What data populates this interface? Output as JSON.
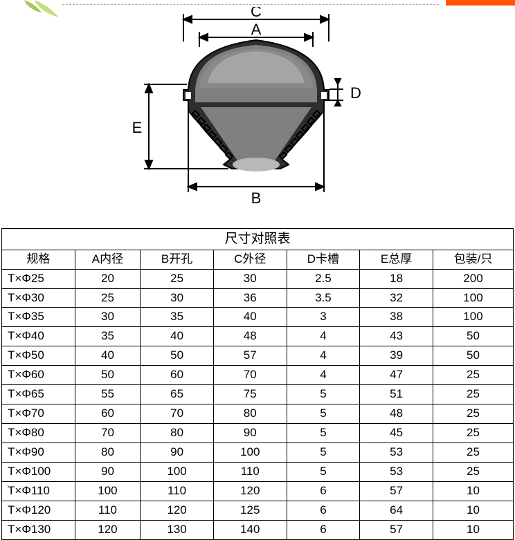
{
  "leaf": {
    "fill": "#a5c85a",
    "fill2": "#c2e07a"
  },
  "diagram": {
    "labels": {
      "A": "A",
      "B": "B",
      "C": "C",
      "D": "D",
      "E": "E"
    },
    "colors": {
      "outline": "#000000",
      "body_dark": "#2e2e2e",
      "body_mid": "#808080",
      "body_mid2": "#8a8a8a",
      "body_light": "#b8b8b8",
      "arrow": "#000000",
      "label": "#000000"
    },
    "font_size": 22
  },
  "table": {
    "title": "尺寸对照表",
    "columns": [
      "规格",
      "A内径",
      "B开孔",
      "C外径",
      "D卡槽",
      "E总厚",
      "包装/只"
    ],
    "spec_prefix": "T×",
    "phi": "Φ",
    "rows": [
      {
        "size": "25",
        "a": "20",
        "b": "25",
        "c": "30",
        "d": "2.5",
        "e": "18",
        "pack": "200"
      },
      {
        "size": "30",
        "a": "25",
        "b": "30",
        "c": "36",
        "d": "3.5",
        "e": "32",
        "pack": "100"
      },
      {
        "size": "35",
        "a": "30",
        "b": "35",
        "c": "40",
        "d": "3",
        "e": "38",
        "pack": "100"
      },
      {
        "size": "40",
        "a": "35",
        "b": "40",
        "c": "48",
        "d": "4",
        "e": "43",
        "pack": "50"
      },
      {
        "size": "50",
        "a": "40",
        "b": "50",
        "c": "57",
        "d": "4",
        "e": "39",
        "pack": "50"
      },
      {
        "size": "60",
        "a": "50",
        "b": "60",
        "c": "70",
        "d": "4",
        "e": "47",
        "pack": "25"
      },
      {
        "size": "65",
        "a": "55",
        "b": "65",
        "c": "75",
        "d": "5",
        "e": "51",
        "pack": "25"
      },
      {
        "size": "70",
        "a": "60",
        "b": "70",
        "c": "80",
        "d": "5",
        "e": "48",
        "pack": "25"
      },
      {
        "size": "80",
        "a": "70",
        "b": "80",
        "c": "90",
        "d": "5",
        "e": "45",
        "pack": "25"
      },
      {
        "size": "90",
        "a": "80",
        "b": "90",
        "c": "100",
        "d": "5",
        "e": "53",
        "pack": "25"
      },
      {
        "size": "100",
        "a": "90",
        "b": "100",
        "c": "110",
        "d": "5",
        "e": "53",
        "pack": "25"
      },
      {
        "size": "110",
        "a": "100",
        "b": "110",
        "c": "120",
        "d": "6",
        "e": "57",
        "pack": "10"
      },
      {
        "size": "120",
        "a": "110",
        "b": "120",
        "c": "125",
        "d": "6",
        "e": "64",
        "pack": "10"
      },
      {
        "size": "130",
        "a": "120",
        "b": "130",
        "c": "140",
        "d": "6",
        "e": "57",
        "pack": "10"
      }
    ],
    "colors": {
      "border": "#000000",
      "text": "#000000",
      "bg": "#ffffff"
    },
    "font_size": 17
  }
}
